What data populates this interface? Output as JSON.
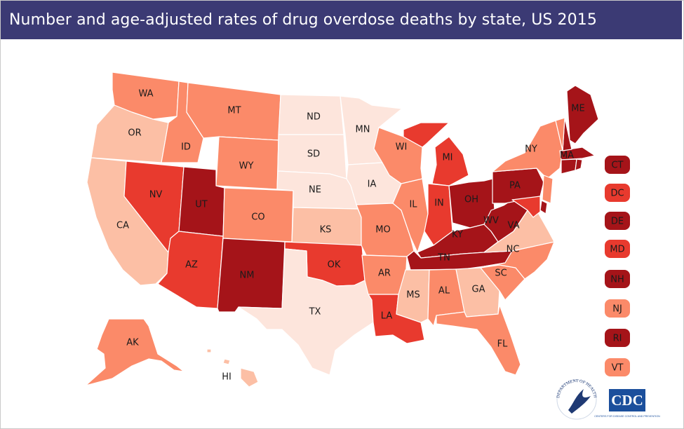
{
  "title": "Number and age-adjusted rates of drug overdose deaths by state, US 2015",
  "colors": {
    "title_bg": "#3b3a74",
    "c1": "#fde5dc",
    "c2": "#fcbfa5",
    "c3": "#fb8a69",
    "c4": "#e83a2e",
    "c5": "#a51419"
  },
  "states": [
    {
      "abbr": "WA",
      "cls": "c3"
    },
    {
      "abbr": "OR",
      "cls": "c2"
    },
    {
      "abbr": "CA",
      "cls": "c2"
    },
    {
      "abbr": "ID",
      "cls": "c3"
    },
    {
      "abbr": "NV",
      "cls": "c4"
    },
    {
      "abbr": "MT",
      "cls": "c3"
    },
    {
      "abbr": "WY",
      "cls": "c3"
    },
    {
      "abbr": "UT",
      "cls": "c5"
    },
    {
      "abbr": "AZ",
      "cls": "c4"
    },
    {
      "abbr": "CO",
      "cls": "c3"
    },
    {
      "abbr": "NM",
      "cls": "c5"
    },
    {
      "abbr": "ND",
      "cls": "c1"
    },
    {
      "abbr": "SD",
      "cls": "c1"
    },
    {
      "abbr": "NE",
      "cls": "c1"
    },
    {
      "abbr": "KS",
      "cls": "c2"
    },
    {
      "abbr": "OK",
      "cls": "c4"
    },
    {
      "abbr": "TX",
      "cls": "c1"
    },
    {
      "abbr": "MN",
      "cls": "c1"
    },
    {
      "abbr": "IA",
      "cls": "c1"
    },
    {
      "abbr": "MO",
      "cls": "c3"
    },
    {
      "abbr": "AR",
      "cls": "c3"
    },
    {
      "abbr": "LA",
      "cls": "c4"
    },
    {
      "abbr": "WI",
      "cls": "c3"
    },
    {
      "abbr": "IL",
      "cls": "c3"
    },
    {
      "abbr": "MI",
      "cls": "c4"
    },
    {
      "abbr": "IN",
      "cls": "c4"
    },
    {
      "abbr": "OH",
      "cls": "c5"
    },
    {
      "abbr": "KY",
      "cls": "c5"
    },
    {
      "abbr": "TN",
      "cls": "c5"
    },
    {
      "abbr": "MS",
      "cls": "c2"
    },
    {
      "abbr": "AL",
      "cls": "c3"
    },
    {
      "abbr": "GA",
      "cls": "c2"
    },
    {
      "abbr": "FL",
      "cls": "c3"
    },
    {
      "abbr": "SC",
      "cls": "c3"
    },
    {
      "abbr": "NC",
      "cls": "c3"
    },
    {
      "abbr": "VA",
      "cls": "c2"
    },
    {
      "abbr": "WV",
      "cls": "c5"
    },
    {
      "abbr": "PA",
      "cls": "c5"
    },
    {
      "abbr": "NY",
      "cls": "c3"
    },
    {
      "abbr": "ME",
      "cls": "c5"
    },
    {
      "abbr": "MA",
      "cls": "c5"
    },
    {
      "abbr": "AK",
      "cls": "c3"
    },
    {
      "abbr": "HI",
      "cls": "c2"
    }
  ],
  "small_states": [
    {
      "abbr": "CT",
      "cls": "c5"
    },
    {
      "abbr": "DC",
      "cls": "c4"
    },
    {
      "abbr": "DE",
      "cls": "c5"
    },
    {
      "abbr": "MD",
      "cls": "c4"
    },
    {
      "abbr": "NH",
      "cls": "c5"
    },
    {
      "abbr": "NJ",
      "cls": "c3"
    },
    {
      "abbr": "RI",
      "cls": "c5"
    },
    {
      "abbr": "VT",
      "cls": "c3"
    }
  ],
  "logos": {
    "hhs_seal_text": "DEPARTMENT OF HEALTH & HUMAN SERVICES · USA",
    "cdc_text": "CDC",
    "cdc_subtext": "CENTERS FOR DISEASE CONTROL AND PREVENTION"
  }
}
